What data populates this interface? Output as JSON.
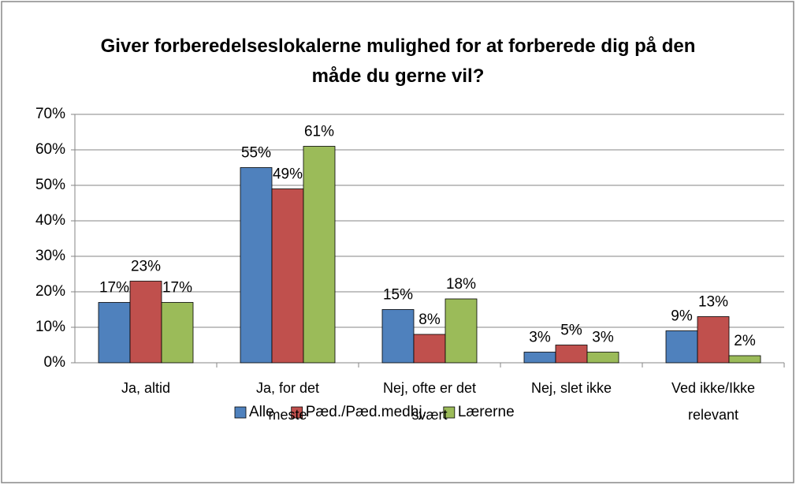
{
  "chart_data": {
    "type": "bar",
    "title": "Giver forberedelseslokalerne mulighed for at forberede dig på den måde du gerne vil?",
    "categories": [
      "Ja, altid",
      "Ja, for det meste",
      "Nej, ofte er det svært",
      "Nej, slet ikke",
      "Ved ikke/Ikke relevant"
    ],
    "series": [
      {
        "name": "Alle",
        "color": "#4f81bd",
        "values": [
          17,
          55,
          15,
          3,
          9
        ],
        "value_labels": [
          "17%",
          "55%",
          "15%",
          "3%",
          "9%"
        ]
      },
      {
        "name": "Pæd./Pæd.medhj.",
        "color": "#c0504d",
        "values": [
          23,
          49,
          8,
          5,
          13
        ],
        "value_labels": [
          "23%",
          "49%",
          "8%",
          "5%",
          "13%"
        ]
      },
      {
        "name": "Lærerne",
        "color": "#9bbb59",
        "values": [
          17,
          61,
          18,
          3,
          2
        ],
        "value_labels": [
          "17%",
          "61%",
          "18%",
          "3%",
          "2%"
        ]
      }
    ],
    "ylim": [
      0,
      70
    ],
    "yticks": [
      {
        "value": 0,
        "label": "0%"
      },
      {
        "value": 10,
        "label": "10%"
      },
      {
        "value": 20,
        "label": "20%"
      },
      {
        "value": 30,
        "label": "30%"
      },
      {
        "value": 40,
        "label": "40%"
      },
      {
        "value": 50,
        "label": "50%"
      },
      {
        "value": 60,
        "label": "60%"
      },
      {
        "value": 70,
        "label": "70%"
      }
    ],
    "grid": true,
    "legend": "bottom"
  }
}
